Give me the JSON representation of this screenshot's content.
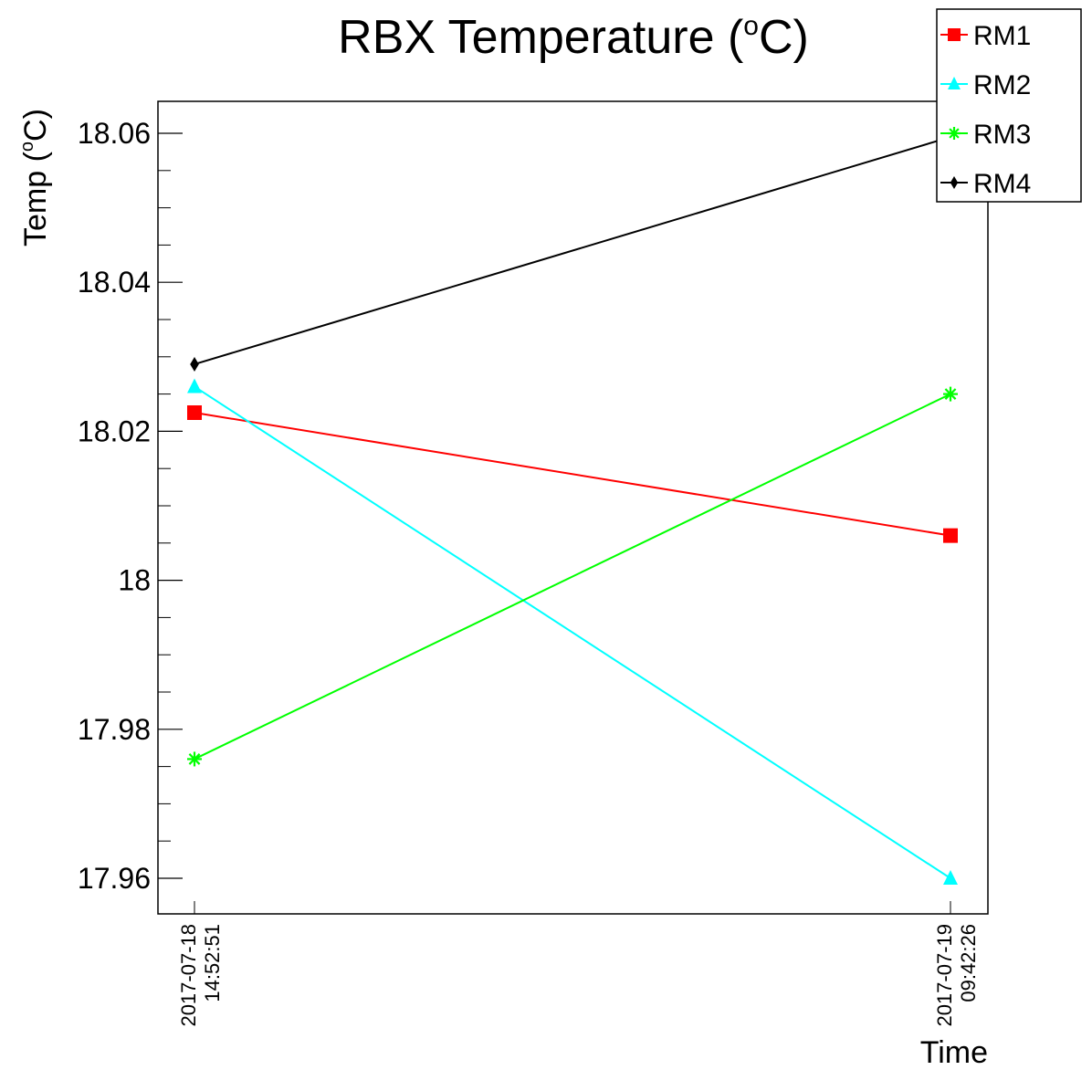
{
  "chart_data": {
    "type": "line",
    "title": "RBX Temperature (°C)",
    "title_main": "RBX Temperature (",
    "title_sup": "o",
    "title_end": "C)",
    "xlabel": "Time",
    "ylabel": "Temp (°C)",
    "ylabel_main": "Temp (",
    "ylabel_sup": "o",
    "ylabel_end": "C)",
    "ylim": [
      17.955,
      18.064
    ],
    "y_ticks": [
      "18.06",
      "18.04",
      "18.02",
      "18",
      "17.98",
      "17.96"
    ],
    "x": [
      {
        "date": "2017-07-18",
        "time": "14:52:51"
      },
      {
        "date": "2017-07-19",
        "time": "09:42:26"
      }
    ],
    "series": [
      {
        "name": "RM1",
        "color": "#ff0000",
        "marker": "square",
        "values": [
          18.0225,
          18.006
        ]
      },
      {
        "name": "RM2",
        "color": "#00ffff",
        "marker": "triangle",
        "values": [
          18.026,
          17.96
        ]
      },
      {
        "name": "RM3",
        "color": "#00ff00",
        "marker": "star",
        "values": [
          17.976,
          18.025
        ]
      },
      {
        "name": "RM4",
        "color": "#000000",
        "marker": "diamond",
        "values": [
          18.029,
          18.0595
        ]
      }
    ],
    "legend_position": "top-right",
    "grid": false
  }
}
